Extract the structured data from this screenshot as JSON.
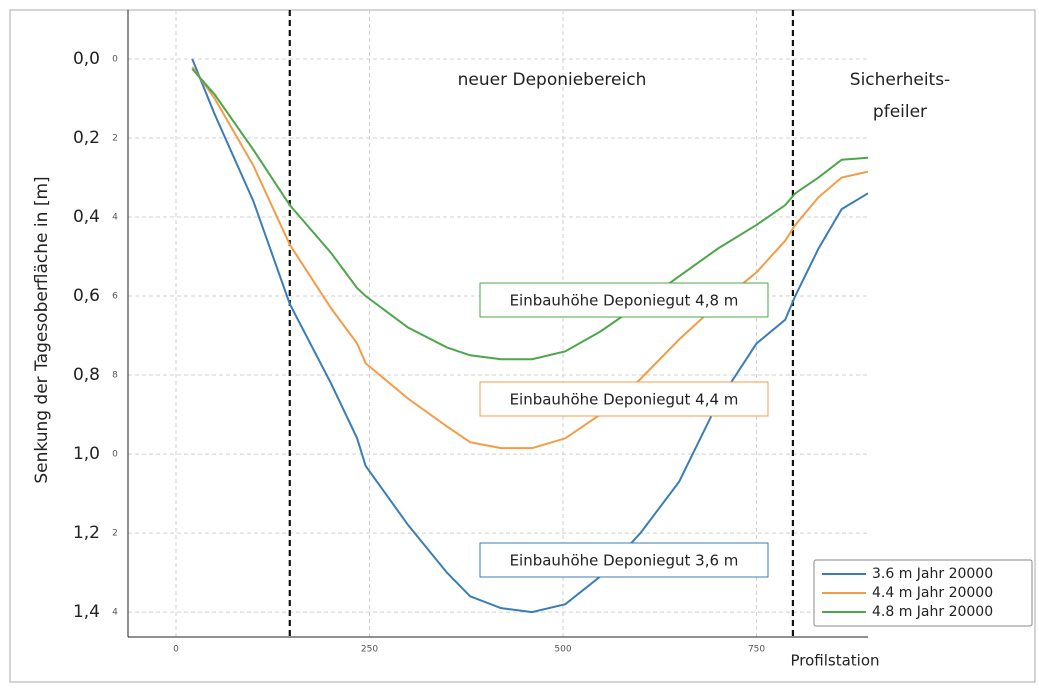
{
  "chart_data": {
    "type": "line",
    "y_label": "Senkung der Tagesoberfläche in [m]",
    "x_label": "Profilstation",
    "x": [
      21,
      50,
      100,
      147,
      200,
      234,
      245,
      300,
      350,
      380,
      420,
      460,
      503,
      548,
      600,
      650,
      700,
      750,
      787,
      800,
      830,
      860,
      894
    ],
    "series": [
      {
        "name": "3.6 m Jahr 20000",
        "color": "#3a7db6",
        "values": [
          0.0,
          0.14,
          0.36,
          0.62,
          0.82,
          0.96,
          1.03,
          1.18,
          1.3,
          1.36,
          1.39,
          1.4,
          1.38,
          1.31,
          1.2,
          1.07,
          0.87,
          0.72,
          0.66,
          0.6,
          0.48,
          0.38,
          0.34
        ]
      },
      {
        "name": "4.4 m Jahr 20000",
        "color": "#f39c45",
        "values": [
          0.02,
          0.1,
          0.27,
          0.47,
          0.63,
          0.72,
          0.77,
          0.86,
          0.93,
          0.97,
          0.985,
          0.985,
          0.96,
          0.9,
          0.81,
          0.71,
          0.62,
          0.54,
          0.46,
          0.42,
          0.35,
          0.3,
          0.285
        ]
      },
      {
        "name": "4.8 m Jahr 20000",
        "color": "#4ca64a",
        "values": [
          0.025,
          0.09,
          0.23,
          0.37,
          0.49,
          0.58,
          0.6,
          0.68,
          0.73,
          0.75,
          0.76,
          0.76,
          0.74,
          0.69,
          0.62,
          0.55,
          0.48,
          0.42,
          0.37,
          0.34,
          0.3,
          0.255,
          0.25
        ]
      }
    ],
    "xlim": [
      -62,
      894
    ],
    "xticks": [
      0,
      250,
      500,
      750
    ],
    "ylim": [
      -0.124,
      1.463
    ],
    "y_inverted": true,
    "yticks": [
      {
        "value": 0,
        "label": "0,0"
      },
      {
        "value": 0.2,
        "label": "0,2"
      },
      {
        "value": 0.4,
        "label": "0,4"
      },
      {
        "value": 0.6,
        "label": "0,6"
      },
      {
        "value": 0.8,
        "label": "0,8"
      },
      {
        "value": 1.0,
        "label": "1,0"
      },
      {
        "value": 1.2,
        "label": "1,2"
      },
      {
        "value": 1.4,
        "label": "1,4"
      }
    ],
    "inner_ytick_labels": [
      "0",
      "2",
      "4",
      "6",
      "8",
      "0",
      "2",
      "4"
    ],
    "grid": true,
    "vlines": [
      147,
      797
    ],
    "region_labels": [
      "neuer Deponiebereich",
      "Sicherheits-",
      "pfeiler"
    ],
    "curve_labels": [
      "Einbauhöhe Deponiegut 4,8 m",
      "Einbauhöhe Deponiegut 4,4 m",
      "Einbauhöhe Deponiegut 3,6 m"
    ],
    "legend": "lower right"
  }
}
